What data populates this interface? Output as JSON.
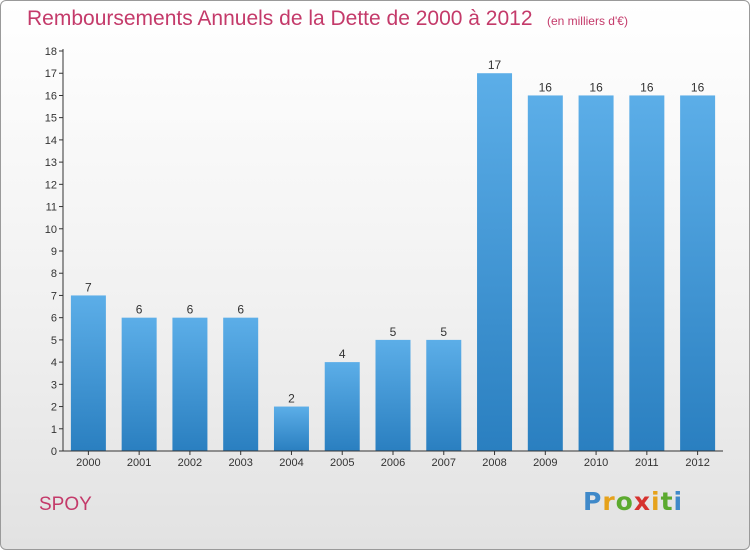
{
  "header": {
    "title": "Remboursements Annuels de la Dette de 2000 à 2012",
    "unit": "(en milliers d'€)"
  },
  "footer": {
    "place": "SPOY",
    "brand": {
      "letters": [
        "P",
        "r",
        "o",
        "x",
        "i",
        "t",
        "i"
      ],
      "colors": [
        "#3f89c9",
        "#e6a21b",
        "#5caa2f",
        "#d6322e",
        "#e6a21b",
        "#5caa2f",
        "#3f89c9"
      ]
    }
  },
  "colors": {
    "bar_light": "#5caee8",
    "bar_dark": "#2a7fc0",
    "title": "#c43a6a"
  },
  "chart_data": {
    "type": "bar",
    "categories": [
      "2000",
      "2001",
      "2002",
      "2003",
      "2004",
      "2005",
      "2006",
      "2007",
      "2008",
      "2009",
      "2010",
      "2011",
      "2012"
    ],
    "values": [
      7,
      6,
      6,
      6,
      2,
      4,
      5,
      5,
      17,
      16,
      16,
      16,
      16
    ],
    "data_labels": [
      "7",
      "6",
      "6",
      "6",
      "2",
      "4",
      "5",
      "5",
      "17",
      "16",
      "16",
      "16",
      "16"
    ],
    "y_ticks": [
      "0",
      "1",
      "2",
      "3",
      "4",
      "5",
      "6",
      "7",
      "8",
      "9",
      "10",
      "11",
      "12",
      "13",
      "14",
      "15",
      "16",
      "17",
      "18"
    ],
    "ylim": [
      0,
      18
    ],
    "grid": false
  }
}
